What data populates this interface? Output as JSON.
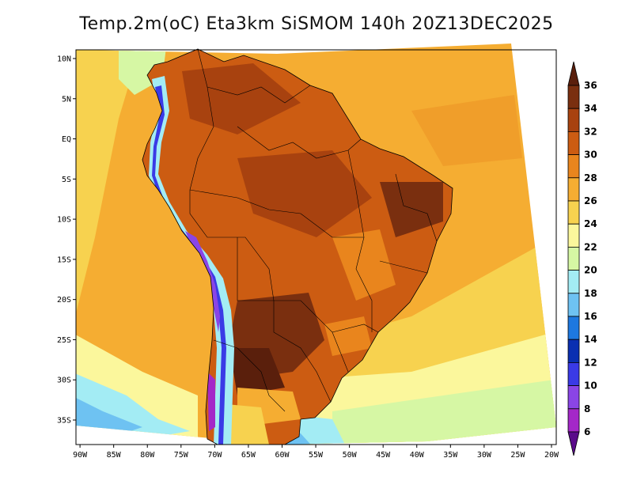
{
  "title": "Temp.2m(oC) Eta3km SiSMOM 140h 20Z13DEC2025",
  "lat_ticks": [
    {
      "label": "10N",
      "lat": 10
    },
    {
      "label": "5N",
      "lat": 5
    },
    {
      "label": "EQ",
      "lat": 0
    },
    {
      "label": "5S",
      "lat": -5
    },
    {
      "label": "10S",
      "lat": -10
    },
    {
      "label": "15S",
      "lat": -15
    },
    {
      "label": "20S",
      "lat": -20
    },
    {
      "label": "25S",
      "lat": -25
    },
    {
      "label": "30S",
      "lat": -30
    },
    {
      "label": "35S",
      "lat": -35
    }
  ],
  "lon_ticks": [
    {
      "label": "90W",
      "lon": -90
    },
    {
      "label": "85W",
      "lon": -85
    },
    {
      "label": "80W",
      "lon": -80
    },
    {
      "label": "75W",
      "lon": -75
    },
    {
      "label": "70W",
      "lon": -70
    },
    {
      "label": "65W",
      "lon": -65
    },
    {
      "label": "60W",
      "lon": -60
    },
    {
      "label": "55W",
      "lon": -55
    },
    {
      "label": "50W",
      "lon": -50
    },
    {
      "label": "45W",
      "lon": -45
    },
    {
      "label": "40W",
      "lon": -40
    },
    {
      "label": "35W",
      "lon": -35
    },
    {
      "label": "30W",
      "lon": -30
    },
    {
      "label": "25W",
      "lon": -25
    },
    {
      "label": "20W",
      "lon": -20
    }
  ],
  "colorbar": {
    "levels": [
      "36",
      "34",
      "32",
      "30",
      "28",
      "26",
      "24",
      "22",
      "20",
      "18",
      "16",
      "14",
      "12",
      "10",
      "8",
      "6"
    ],
    "colors": [
      "#5a1f0c",
      "#7a2f0f",
      "#a8420f",
      "#cc5c12",
      "#e9851d",
      "#f5ad32",
      "#f7d24f",
      "#fbf79c",
      "#d6f7a4",
      "#a3ecf4",
      "#6ec2f2",
      "#1d78e0",
      "#0a2fb1",
      "#3a3ae6",
      "#8a45e6",
      "#a428c8",
      "#5a0a8a"
    ]
  },
  "colors": {
    "ocean_warm": "#f5ad32",
    "ocean_mid": "#f7d24f",
    "ocean_cool": "#fbf79c",
    "land_hot": "#cc5c12",
    "land_very_hot": "#7a2f0f",
    "andes_cold": "#3a3ae6",
    "border": "#000000"
  }
}
